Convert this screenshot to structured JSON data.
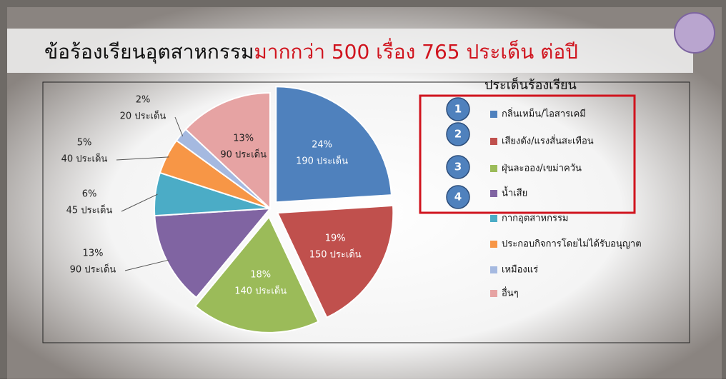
{
  "chart_data": {
    "type": "pie",
    "title": "ข้อร้องเรียนอุตสาหกรรม",
    "subtitle": "มากกว่า 500 เรื่อง 765 ประเด็น ต่อปี",
    "legend_title": "ประเด็นร้องเรียน",
    "highlight_badges": [
      "1",
      "2",
      "3",
      "4"
    ],
    "categories": [
      "กลิ่นเหม็น/ไอสารเคมี",
      "เสียงดัง/แรงสั่นสะเทือน",
      "ฝุ่นละออง/เขม่าควัน",
      "น้ำเสีย",
      "กากอุตสาหกรรม",
      "ประกอบกิจการโดยไม่ได้รับอนุญาต",
      "เหมืองแร่",
      "อื่นๆ"
    ],
    "values": [
      24,
      19,
      18,
      13,
      6,
      5,
      2,
      13
    ],
    "value_labels": [
      "24%",
      "19%",
      "18%",
      "13%",
      "6%",
      "5%",
      "2%",
      "13%"
    ],
    "count_labels": [
      "190 ประเด็น",
      "150 ประเด็น",
      "140 ประเด็น",
      "90 ประเด็น",
      "45 ประเด็น",
      "40 ประเด็น",
      "20 ประเด็น",
      "90 ประเด็น"
    ],
    "colors": [
      "#4f81bd",
      "#c0504d",
      "#9bbb59",
      "#8064a2",
      "#4bacc6",
      "#f79646",
      "#a5b9e0",
      "#e6a3a3"
    ],
    "legend": "right"
  }
}
